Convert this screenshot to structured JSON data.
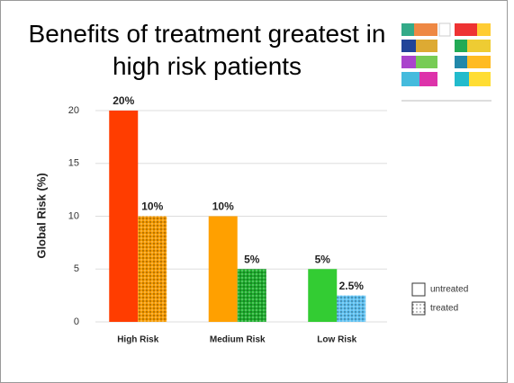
{
  "chart_data": {
    "type": "bar",
    "title": "Benefits of treatment greatest in high risk patients",
    "ylabel": "Global Risk (%)",
    "categories": [
      "High Risk",
      "Medium Risk",
      "Low Risk"
    ],
    "series": [
      {
        "name": "untreated",
        "colors": [
          "#ff3d00",
          "#ffa000",
          "#33cc33"
        ],
        "values": [
          20,
          10,
          5
        ],
        "value_labels": [
          "20%",
          "10%",
          "5%"
        ]
      },
      {
        "name": "treated",
        "pattern": "dotted",
        "colors": [
          "#f59a00",
          "#1fae2e",
          "#5ec0f0"
        ],
        "values": [
          10,
          5,
          2.5
        ],
        "value_labels": [
          "10%",
          "5%",
          "2.5%"
        ]
      }
    ],
    "ylim": [
      0,
      20
    ],
    "yticks": [
      0,
      5,
      10,
      15,
      20
    ],
    "grid": true
  }
}
